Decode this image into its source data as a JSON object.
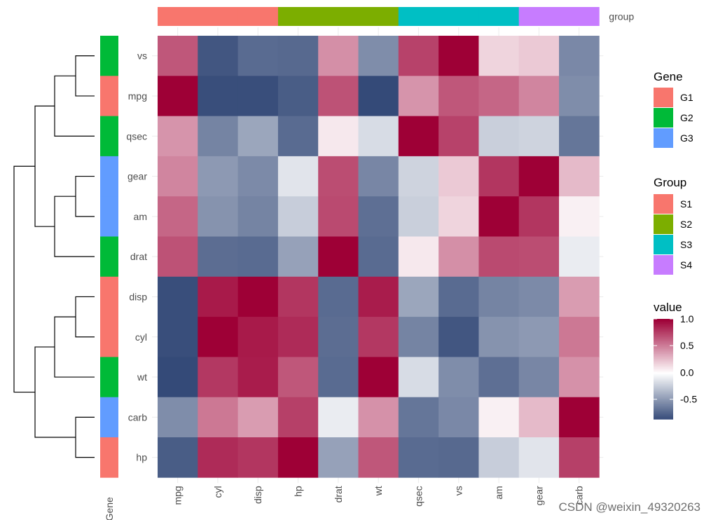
{
  "chart_data": {
    "type": "heatmap",
    "rows": [
      "vs",
      "mpg",
      "qsec",
      "gear",
      "am",
      "drat",
      "disp",
      "cyl",
      "wt",
      "carb",
      "hp"
    ],
    "columns": [
      "mpg",
      "cyl",
      "disp",
      "hp",
      "drat",
      "wt",
      "qsec",
      "vs",
      "am",
      "gear",
      "carb"
    ],
    "values": [
      [
        0.66,
        -0.81,
        -0.71,
        -0.72,
        0.44,
        -0.55,
        0.74,
        1.0,
        0.17,
        0.21,
        -0.57
      ],
      [
        1.0,
        -0.85,
        -0.85,
        -0.78,
        0.68,
        -0.87,
        0.42,
        0.66,
        0.6,
        0.48,
        -0.55
      ],
      [
        0.42,
        -0.59,
        -0.43,
        -0.71,
        0.09,
        -0.17,
        1.0,
        0.74,
        -0.23,
        -0.21,
        -0.66
      ],
      [
        0.48,
        -0.49,
        -0.56,
        -0.13,
        0.7,
        -0.58,
        -0.21,
        0.21,
        0.79,
        1.0,
        0.27
      ],
      [
        0.6,
        -0.52,
        -0.59,
        -0.24,
        0.71,
        -0.69,
        -0.23,
        0.17,
        1.0,
        0.79,
        0.06
      ],
      [
        0.68,
        -0.7,
        -0.71,
        -0.45,
        1.0,
        -0.71,
        0.09,
        0.44,
        0.71,
        0.7,
        -0.09
      ],
      [
        -0.85,
        0.9,
        1.0,
        0.79,
        -0.71,
        0.89,
        -0.43,
        -0.71,
        -0.59,
        -0.56,
        0.39
      ],
      [
        -0.85,
        1.0,
        0.9,
        0.83,
        -0.7,
        0.78,
        -0.59,
        -0.81,
        -0.52,
        -0.49,
        0.53
      ],
      [
        -0.87,
        0.78,
        0.89,
        0.66,
        -0.71,
        1.0,
        -0.17,
        -0.55,
        -0.69,
        -0.58,
        0.43
      ],
      [
        -0.55,
        0.53,
        0.39,
        0.75,
        -0.09,
        0.43,
        -0.66,
        -0.57,
        0.06,
        0.27,
        1.0
      ],
      [
        -0.78,
        0.83,
        0.79,
        1.0,
        -0.45,
        0.66,
        -0.71,
        -0.72,
        -0.24,
        -0.13,
        0.75
      ]
    ],
    "row_groups": [
      "G2",
      "G1",
      "G2",
      "G3",
      "G3",
      "G2",
      "G1",
      "G1",
      "G2",
      "G3",
      "G1"
    ],
    "column_groups": [
      "S1",
      "S1",
      "S1",
      "S2",
      "S2",
      "S2",
      "S3",
      "S3",
      "S3",
      "S4",
      "S4"
    ],
    "column_group_label": "group",
    "row_group_label": "Gene",
    "dendrogram": {
      "merges": [
        [
          "vs",
          "mpg"
        ],
        [
          "gear",
          "am"
        ],
        [
          "disp",
          "cyl"
        ],
        [
          "carb",
          "hp"
        ],
        [
          "vs+mpg",
          "qsec"
        ],
        [
          "gear+am",
          "drat"
        ],
        [
          "disp+cyl",
          "wt"
        ],
        [
          "vs+mpg+qsec",
          "gear+am+drat"
        ],
        [
          "disp+cyl+wt",
          "carb+hp"
        ],
        [
          "left",
          "right"
        ]
      ]
    },
    "legends": {
      "gene": {
        "title": "Gene",
        "items": [
          {
            "label": "G1",
            "color": "#F8766D"
          },
          {
            "label": "G2",
            "color": "#00BA38"
          },
          {
            "label": "G3",
            "color": "#619CFF"
          }
        ]
      },
      "group": {
        "title": "Group",
        "items": [
          {
            "label": "S1",
            "color": "#F8766D"
          },
          {
            "label": "S2",
            "color": "#7CAE00"
          },
          {
            "label": "S3",
            "color": "#00BFC4"
          },
          {
            "label": "S4",
            "color": "#C77CFF"
          }
        ]
      },
      "value": {
        "title": "value",
        "ticks": [
          "1.0",
          "0.5",
          "0.0",
          "-0.5"
        ],
        "tick_values": [
          1.0,
          0.5,
          0.0,
          -0.5
        ],
        "range": [
          -0.87,
          1.0
        ],
        "colors": {
          "low": "#344A78",
          "mid": "#FFFFFF",
          "high": "#9E0036"
        }
      }
    },
    "watermark": "CSDN @weixin_49320263"
  }
}
